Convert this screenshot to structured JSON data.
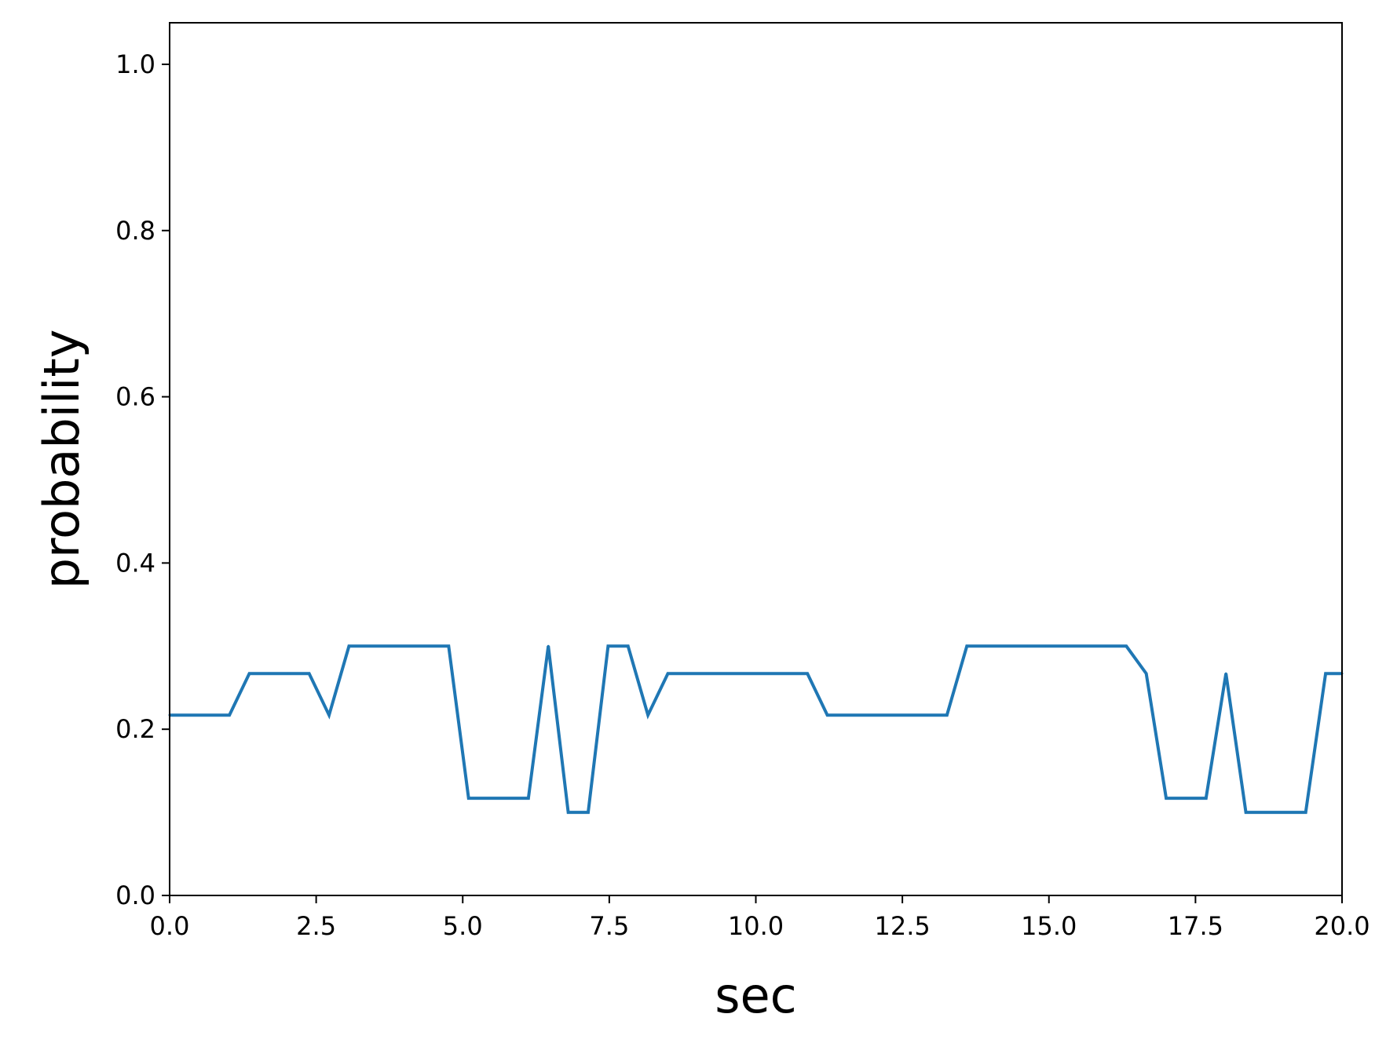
{
  "chart_data": {
    "type": "line",
    "title": "",
    "xlabel": "sec",
    "ylabel": "probability",
    "xlim": [
      0,
      20
    ],
    "ylim": [
      0,
      1.05
    ],
    "xticks": [
      0,
      2.5,
      5,
      7.5,
      10,
      12.5,
      15,
      17.5,
      20
    ],
    "xtick_labels": [
      "0.0",
      "2.5",
      "5.0",
      "7.5",
      "10.0",
      "12.5",
      "15.0",
      "17.5",
      "20.0"
    ],
    "yticks": [
      0,
      0.2,
      0.4,
      0.6,
      0.8,
      1.0
    ],
    "ytick_labels": [
      "0.0",
      "0.2",
      "0.4",
      "0.6",
      "0.8",
      "1.0"
    ],
    "grid": false,
    "legend": "none",
    "series": [
      {
        "color": "#1f77b4",
        "x": [
          0.0,
          0.34,
          0.68,
          1.02,
          1.36,
          1.7,
          2.04,
          2.38,
          2.72,
          3.06,
          3.4,
          3.74,
          4.08,
          4.42,
          4.76,
          5.1,
          5.44,
          5.78,
          6.12,
          6.46,
          6.8,
          7.14,
          7.48,
          7.82,
          8.16,
          8.5,
          8.84,
          9.18,
          9.52,
          9.86,
          10.2,
          10.54,
          10.88,
          11.22,
          11.56,
          11.9,
          12.24,
          12.58,
          12.92,
          13.26,
          13.6,
          13.94,
          14.28,
          14.62,
          14.96,
          15.3,
          15.64,
          15.98,
          16.32,
          16.66,
          17.0,
          17.34,
          17.68,
          18.02,
          18.36,
          18.7,
          19.04,
          19.38,
          19.72,
          20.0
        ],
        "y": [
          0.217,
          0.217,
          0.217,
          0.217,
          0.267,
          0.267,
          0.267,
          0.267,
          0.217,
          0.3,
          0.3,
          0.3,
          0.3,
          0.3,
          0.3,
          0.117,
          0.117,
          0.117,
          0.117,
          0.3,
          0.1,
          0.1,
          0.3,
          0.3,
          0.217,
          0.267,
          0.267,
          0.267,
          0.267,
          0.267,
          0.267,
          0.267,
          0.267,
          0.217,
          0.217,
          0.217,
          0.217,
          0.217,
          0.217,
          0.217,
          0.3,
          0.3,
          0.3,
          0.3,
          0.3,
          0.3,
          0.3,
          0.3,
          0.3,
          0.267,
          0.117,
          0.117,
          0.117,
          0.267,
          0.1,
          0.1,
          0.1,
          0.1,
          0.267,
          0.267
        ]
      }
    ]
  }
}
